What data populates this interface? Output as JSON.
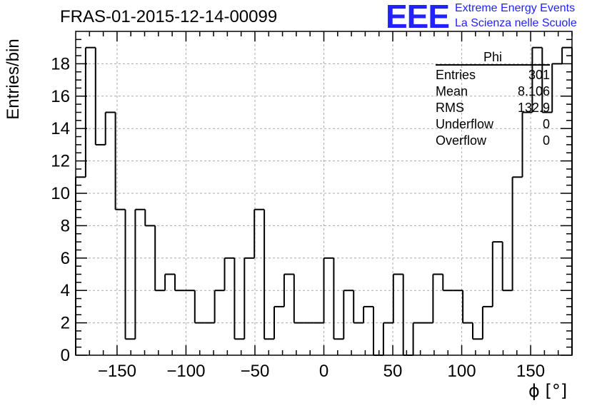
{
  "header": {
    "title": "FRAS-01-2015-12-14-00099",
    "logo_text": "EEE",
    "logo_line1": "Extreme Energy Events",
    "logo_line2": "La Scienza nelle Scuole",
    "logo_color": "#2222ff"
  },
  "stats_box": {
    "title": "Phi",
    "rows": [
      {
        "label": "Entries",
        "value": "301"
      },
      {
        "label": "Mean",
        "value": "8.106"
      },
      {
        "label": "RMS",
        "value": "132.9"
      },
      {
        "label": "Underflow",
        "value": "0"
      },
      {
        "label": "Overflow",
        "value": "0"
      }
    ]
  },
  "chart_data": {
    "type": "histogram",
    "title": "FRAS-01-2015-12-14-00099",
    "xlabel": "ϕ [°]",
    "ylabel": "Entries/bin",
    "xlim": [
      -180,
      180
    ],
    "ylim": [
      0,
      20
    ],
    "bin_width": 7.2,
    "grid": true,
    "x_ticks": [
      -150,
      -100,
      -50,
      0,
      50,
      100,
      150
    ],
    "x_tick_labels": [
      "−150",
      "−100",
      "−50",
      "0",
      "50",
      "100",
      "150"
    ],
    "y_ticks": [
      0,
      2,
      4,
      6,
      8,
      10,
      12,
      14,
      16,
      18
    ],
    "y_tick_labels": [
      "0",
      "2",
      "4",
      "6",
      "8",
      "10",
      "12",
      "14",
      "16",
      "18"
    ],
    "values": [
      11,
      19,
      13,
      15,
      9,
      1,
      9,
      8,
      4,
      5,
      4,
      4,
      2,
      2,
      4,
      6,
      1,
      6,
      9,
      1,
      3,
      5,
      2,
      2,
      2,
      6,
      1,
      4,
      2,
      3,
      0,
      2,
      5,
      0,
      2,
      2,
      5,
      4,
      4,
      2,
      1,
      3,
      7,
      4,
      11,
      15,
      19,
      15,
      18,
      19
    ]
  }
}
